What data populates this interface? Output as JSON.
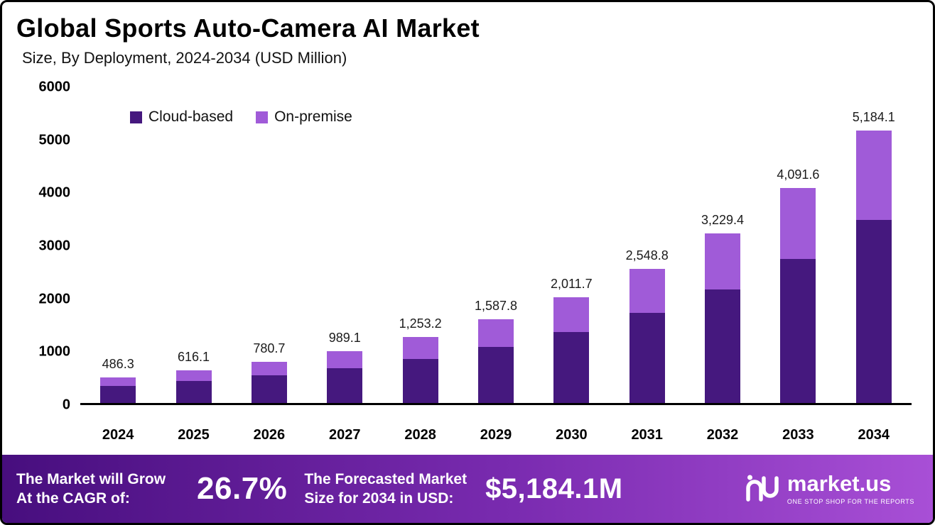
{
  "header": {
    "title": "Global Sports Auto-Camera AI Market",
    "subtitle": "Size, By Deployment, 2024-2034 (USD Million)"
  },
  "chart_data": {
    "type": "bar",
    "stacked": true,
    "title": "Global Sports Auto-Camera AI Market",
    "subtitle": "Size, By Deployment, 2024-2034 (USD Million)",
    "xlabel": "",
    "ylabel": "USD Million",
    "ylim": [
      0,
      6000
    ],
    "yticks": [
      0,
      1000,
      2000,
      3000,
      4000,
      5000,
      6000
    ],
    "grid": false,
    "legend_position": "top-left",
    "categories": [
      "2024",
      "2025",
      "2026",
      "2027",
      "2028",
      "2029",
      "2030",
      "2031",
      "2032",
      "2033",
      "2034"
    ],
    "totals": [
      486.3,
      616.1,
      780.7,
      989.1,
      1253.2,
      1587.8,
      2011.7,
      2548.8,
      3229.4,
      4091.6,
      5184.1
    ],
    "total_labels": [
      "486.3",
      "616.1",
      "780.7",
      "989.1",
      "1,253.2",
      "1,587.8",
      "2,011.7",
      "2,548.8",
      "3,229.4",
      "4,091.6",
      "5,184.1"
    ],
    "series": [
      {
        "name": "Cloud-based",
        "color": "#45187e",
        "values": [
          325.8,
          412.8,
          523.1,
          662.7,
          839.6,
          1063.8,
          1347.8,
          1707.7,
          2163.7,
          2741.4,
          3473.3
        ]
      },
      {
        "name": "On-premise",
        "color": "#a05bd8",
        "values": [
          160.5,
          203.3,
          257.6,
          326.4,
          413.6,
          524.0,
          663.9,
          841.1,
          1065.7,
          1350.2,
          1710.8
        ]
      }
    ]
  },
  "footer": {
    "cagr": {
      "line1": "The Market will Grow",
      "line2": "At the CAGR of:",
      "value": "26.7%"
    },
    "forecast": {
      "line1": "The Forecasted Market",
      "line2": "Size for 2034 in USD:",
      "value": "$5,184.1M"
    },
    "brand": {
      "name": "market.us",
      "tagline": "ONE STOP SHOP FOR THE REPORTS"
    }
  }
}
